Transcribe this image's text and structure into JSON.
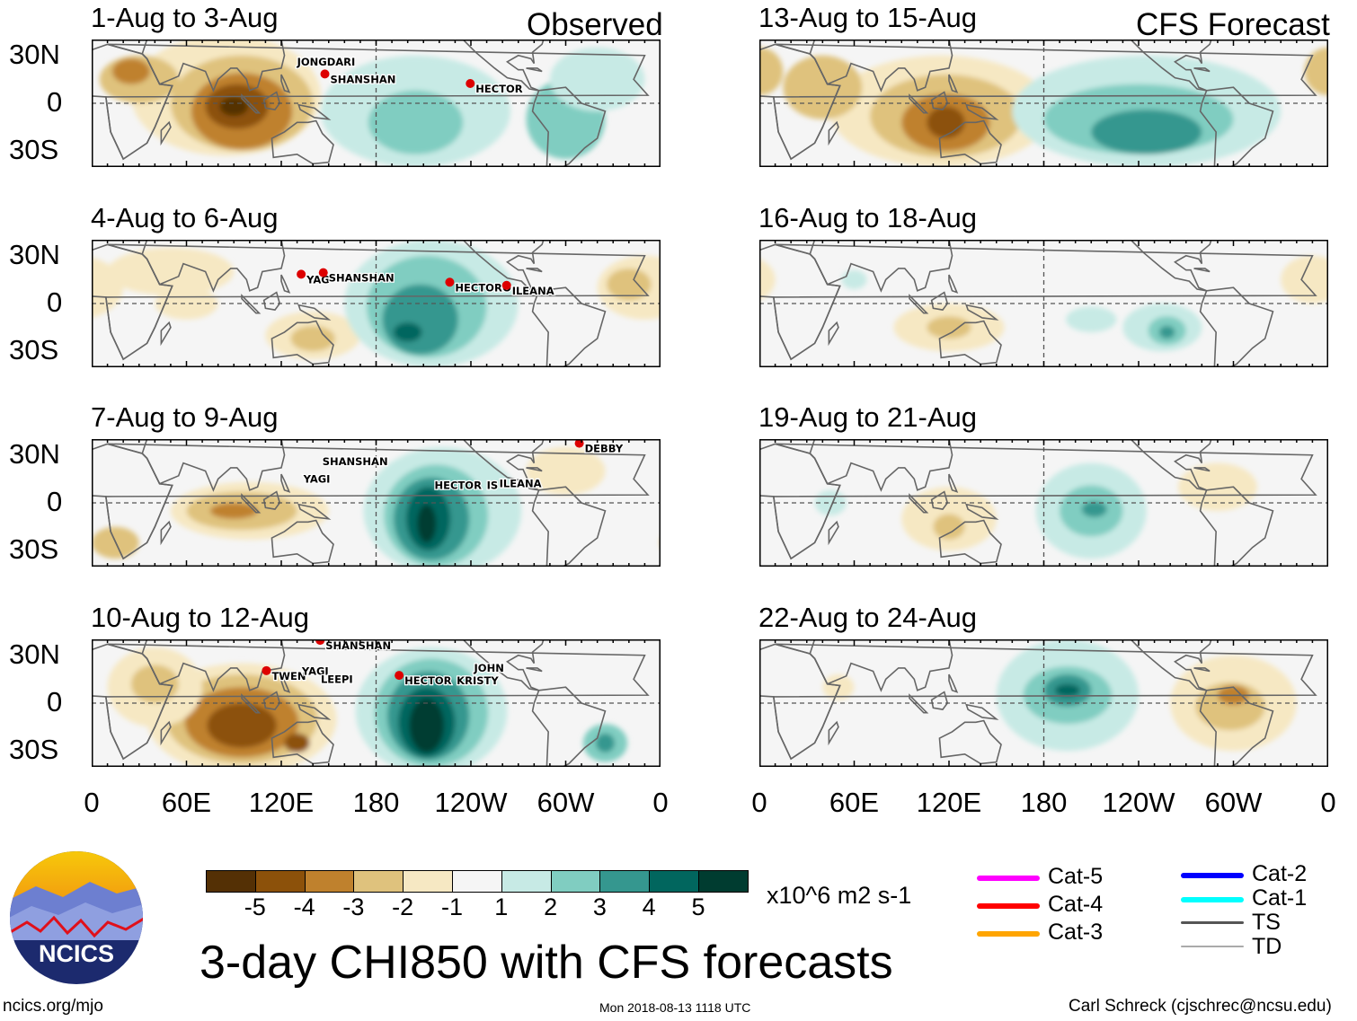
{
  "title": "3-day CHI850 with CFS forecasts",
  "footer": {
    "left": "ncics.org/mjo",
    "center": "Mon 2018-08-13 1118 UTC",
    "right": "Carl Schreck (cjschrec@ncsu.edu)"
  },
  "logo": {
    "text": "NCICS"
  },
  "colors": {
    "levels": [
      "#543005",
      "#8c510a",
      "#bf812d",
      "#dfc27d",
      "#f6e8c3",
      "#f5f5f5",
      "#c7eae5",
      "#80cdc1",
      "#35978f",
      "#01665e",
      "#003c30"
    ]
  },
  "chart_data": {
    "type": "heatmap",
    "variable": "3-day CHI850 anomaly",
    "units": "x10^6 m2 s-1",
    "colorbar_ticks": [
      "-5",
      "-4",
      "-3",
      "-2",
      "-1",
      "1",
      "2",
      "3",
      "4",
      "5"
    ],
    "lat_ticks": [
      "30N",
      "0",
      "30S"
    ],
    "lon_ticks": [
      "0",
      "60E",
      "120E",
      "180",
      "120W",
      "60W",
      "0"
    ],
    "lon_range": [
      0,
      360
    ],
    "lat_range": [
      -40,
      40
    ],
    "column_labels": {
      "observed": "Observed",
      "forecast": "CFS Forecast"
    },
    "panels": [
      {
        "title": "1-Aug to 3-Aug",
        "column": "observed",
        "storms": [
          {
            "name": "JONGDARI",
            "lon": 130,
            "lat": 26
          },
          {
            "name": "SHANSHAN",
            "lon": 151,
            "lat": 15
          },
          {
            "name": "HECTOR",
            "lon": 243,
            "lat": 9
          }
        ]
      },
      {
        "title": "4-Aug to 6-Aug",
        "column": "observed",
        "storms": [
          {
            "name": "YAG",
            "lon": 136,
            "lat": 15
          },
          {
            "name": "SHANSHAN",
            "lon": 150,
            "lat": 16
          },
          {
            "name": "HECTOR",
            "lon": 230,
            "lat": 10
          },
          {
            "name": "O",
            "lon": 260,
            "lat": 10
          },
          {
            "name": "ILEANA",
            "lon": 266,
            "lat": 8
          }
        ]
      },
      {
        "title": "7-Aug to 9-Aug",
        "column": "observed",
        "storms": [
          {
            "name": "SHANSHAN",
            "lon": 146,
            "lat": 26
          },
          {
            "name": "YAGI",
            "lon": 134,
            "lat": 15
          },
          {
            "name": "HECTOR",
            "lon": 217,
            "lat": 11
          },
          {
            "name": "IS",
            "lon": 250,
            "lat": 11
          },
          {
            "name": "ILEANA",
            "lon": 258,
            "lat": 12
          },
          {
            "name": "DEBBY",
            "lon": 312,
            "lat": 34
          }
        ]
      },
      {
        "title": "10-Aug to 12-Aug",
        "column": "observed",
        "storms": [
          {
            "name": "SHANSHAN",
            "lon": 148,
            "lat": 36
          },
          {
            "name": "TWEN",
            "lon": 114,
            "lat": 17
          },
          {
            "name": "YAGI",
            "lon": 133,
            "lat": 20
          },
          {
            "name": "LEEPI",
            "lon": 145,
            "lat": 15
          },
          {
            "name": "HECTOR",
            "lon": 198,
            "lat": 14
          },
          {
            "name": "KRISTY",
            "lon": 231,
            "lat": 14
          },
          {
            "name": "JOHN",
            "lon": 242,
            "lat": 22
          }
        ]
      },
      {
        "title": "13-Aug to 15-Aug",
        "column": "forecast",
        "storms": []
      },
      {
        "title": "16-Aug to 18-Aug",
        "column": "forecast",
        "storms": []
      },
      {
        "title": "19-Aug to 21-Aug",
        "column": "forecast",
        "storms": []
      },
      {
        "title": "22-Aug to 24-Aug",
        "column": "forecast",
        "storms": []
      }
    ]
  },
  "storm_legend": [
    {
      "label": "Cat-5",
      "color": "#ff00ff"
    },
    {
      "label": "Cat-4",
      "color": "#ff0000"
    },
    {
      "label": "Cat-3",
      "color": "#ffa500"
    },
    {
      "label": "Cat-2",
      "color": "#0000ff"
    },
    {
      "label": "Cat-1",
      "color": "#00ffff"
    },
    {
      "label": "TS",
      "color": "#555555"
    },
    {
      "label": "TD",
      "color": "#aaaaaa"
    }
  ]
}
